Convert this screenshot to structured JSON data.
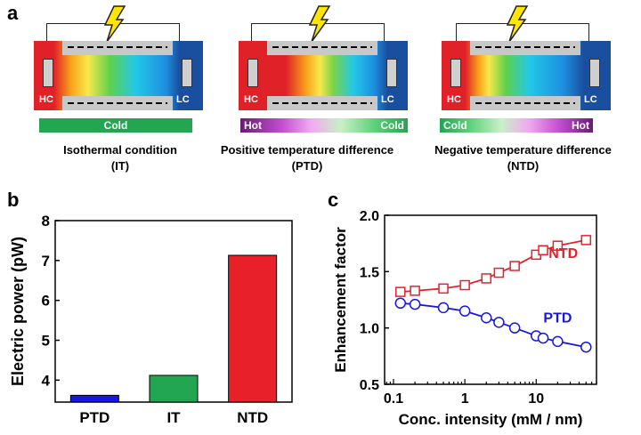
{
  "panels": {
    "a": "a",
    "b": "b",
    "c": "c"
  },
  "schematic": {
    "hc_label": "HC",
    "lc_label": "LC",
    "devices": [
      {
        "bar_left": "",
        "bar_right": "",
        "bar_center": "Cold",
        "caption_line1": "Isothermal condition",
        "caption_line2": "(IT)"
      },
      {
        "bar_left": "Hot",
        "bar_right": "Cold",
        "bar_center": "",
        "caption_line1": "Positive temperature difference",
        "caption_line2": "(PTD)"
      },
      {
        "bar_left": "Cold",
        "bar_right": "Hot",
        "bar_center": "",
        "caption_line1": "Negative temperature difference",
        "caption_line2": "(NTD)"
      }
    ],
    "colors": {
      "hot_red": "#e8202a",
      "cold_blue": "#1a4fa0",
      "bar_green": "#22a651",
      "bar_purple": "#6a1a78",
      "bolt_yellow": "#ffe600"
    },
    "icons": [
      "lightning-bolt-icon",
      "electrode-icon"
    ]
  },
  "chart_data": [
    {
      "type": "bar",
      "categories": [
        "PTD",
        "IT",
        "NTD"
      ],
      "values": [
        3.62,
        4.12,
        7.13
      ],
      "colors": [
        "#1616e6",
        "#22a651",
        "#e8202a"
      ],
      "title": "",
      "xlabel": "",
      "ylabel": "Electric power (pW)",
      "ylim": [
        3.45,
        8.0
      ],
      "yticks": [
        "4",
        "5",
        "6",
        "7",
        "8"
      ]
    },
    {
      "type": "line",
      "title": "",
      "xlabel": "Conc. intensity (mM / nm)",
      "ylabel": "Enhancement factor",
      "xscale": "log",
      "xlim": [
        0.075,
        70
      ],
      "ylim": [
        0.5,
        2.0
      ],
      "xticks": [
        "0.1",
        "1",
        "10"
      ],
      "yticks": [
        "0.5",
        "1.0",
        "1.5",
        "2.0"
      ],
      "series": [
        {
          "name": "NTD",
          "color": "#e8202a",
          "marker": "square",
          "x": [
            0.125,
            0.2,
            0.5,
            1,
            2,
            3,
            5,
            10,
            12.5,
            20,
            50
          ],
          "y": [
            1.32,
            1.33,
            1.35,
            1.38,
            1.44,
            1.49,
            1.55,
            1.65,
            1.69,
            1.73,
            1.78
          ]
        },
        {
          "name": "PTD",
          "color": "#1616e6",
          "marker": "circle",
          "x": [
            0.125,
            0.2,
            0.5,
            1,
            2,
            3,
            5,
            10,
            12.5,
            20,
            50
          ],
          "y": [
            1.22,
            1.21,
            1.18,
            1.15,
            1.09,
            1.05,
            1.0,
            0.93,
            0.91,
            0.88,
            0.83
          ]
        }
      ]
    }
  ]
}
